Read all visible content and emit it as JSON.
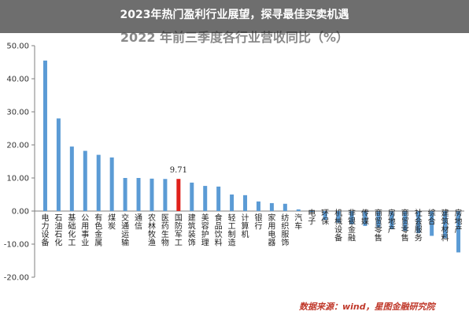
{
  "page": {
    "banner_title": "2023年热门盈利行业展望，探寻最佳买卖机遇",
    "source": "数据来源：wind，星图金融研究院"
  },
  "colors": {
    "bar": "#5b9bd5",
    "highlight": "#e0211b",
    "axis": "#7f7f7f",
    "banner": "#4e4e4e"
  },
  "chart_data": {
    "type": "bar",
    "title": "2022 年前三季度各行业营收同比（%）",
    "xlabel": "",
    "ylabel": "",
    "ylim": [
      -20,
      50
    ],
    "yticks": [
      "50.00",
      "40.00",
      "30.00",
      "20.00",
      "10.00",
      "0.00",
      "-10.00",
      "-20.00"
    ],
    "grid": false,
    "highlight_index": 10,
    "highlight_label": "9.71",
    "categories": [
      "电力设备",
      "石油石化",
      "基础化工",
      "公用事业",
      "有色金属",
      "煤炭",
      "交通运输",
      "通信",
      "农林牧渔",
      "医药生物",
      "国防军工",
      "建筑装饰",
      "美容护理",
      "食品饮料",
      "轻工制造",
      "计算机",
      "银行",
      "家用电器",
      "纺织服饰",
      "汽车",
      "电子",
      "环保",
      "机械设备",
      "非银金融",
      "传媒",
      "商贸零售",
      "房地产",
      "商贸零售",
      "社会服务",
      "综合",
      "建筑材料",
      "房地产"
    ],
    "values": [
      45.5,
      28.0,
      19.5,
      18.2,
      17.0,
      16.2,
      10.0,
      10.0,
      9.8,
      9.7,
      9.71,
      8.6,
      7.6,
      7.4,
      5.0,
      4.8,
      2.9,
      2.4,
      2.2,
      0.5,
      -0.4,
      -2.7,
      -3.5,
      -4.0,
      -4.5,
      -5.0,
      -5.5,
      -6.0,
      -6.7,
      -7.5,
      -8.2,
      -12.5
    ]
  }
}
